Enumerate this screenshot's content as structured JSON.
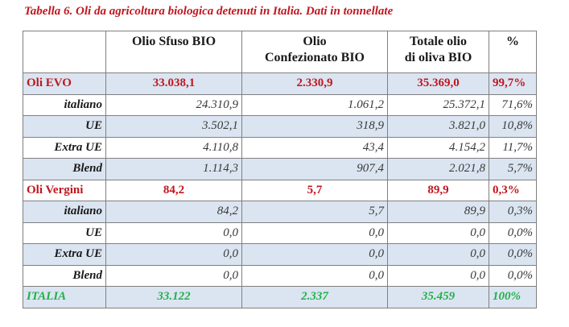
{
  "caption": "Tabella 6. Oli da agricoltura biologica detenuti in Italia. Dati in tonnellate",
  "headers": {
    "col0": "",
    "col1": "Olio Sfuso BIO",
    "col2_line1": "Olio",
    "col2_line2": "Confezionato BIO",
    "col3_line1": "Totale olio",
    "col3_line2": "di oliva BIO",
    "col4": "%"
  },
  "rows": [
    {
      "label": "Oli EVO",
      "sfuso": "33.038,1",
      "confezionato": "2.330,9",
      "totale": "35.369,0",
      "pct": "99,7%"
    },
    {
      "label": "italiano",
      "sfuso": "24.310,9",
      "confezionato": "1.061,2",
      "totale": "25.372,1",
      "pct": "71,6%"
    },
    {
      "label": "UE",
      "sfuso": "3.502,1",
      "confezionato": "318,9",
      "totale": "3.821,0",
      "pct": "10,8%"
    },
    {
      "label": "Extra UE",
      "sfuso": "4.110,8",
      "confezionato": "43,4",
      "totale": "4.154,2",
      "pct": "11,7%"
    },
    {
      "label": "Blend",
      "sfuso": "1.114,3",
      "confezionato": "907,4",
      "totale": "2.021,8",
      "pct": "5,7%"
    },
    {
      "label": "Oli Vergini",
      "sfuso": "84,2",
      "confezionato": "5,7",
      "totale": "89,9",
      "pct": "0,3%"
    },
    {
      "label": "italiano",
      "sfuso": "84,2",
      "confezionato": "5,7",
      "totale": "89,9",
      "pct": "0,3%"
    },
    {
      "label": "UE",
      "sfuso": "0,0",
      "confezionato": "0,0",
      "totale": "0,0",
      "pct": "0,0%"
    },
    {
      "label": "Extra UE",
      "sfuso": "0,0",
      "confezionato": "0,0",
      "totale": "0,0",
      "pct": "0,0%"
    },
    {
      "label": "Blend",
      "sfuso": "0,0",
      "confezionato": "0,0",
      "totale": "0,0",
      "pct": "0,0%"
    },
    {
      "label": "ITALIA",
      "sfuso": "33.122",
      "confezionato": "2.337",
      "totale": "35.459",
      "pct": "100%"
    }
  ],
  "colors": {
    "subtotal": "#c0171f",
    "total": "#21b04a",
    "band": "#dbe5f1",
    "caption": "#c0171f"
  }
}
